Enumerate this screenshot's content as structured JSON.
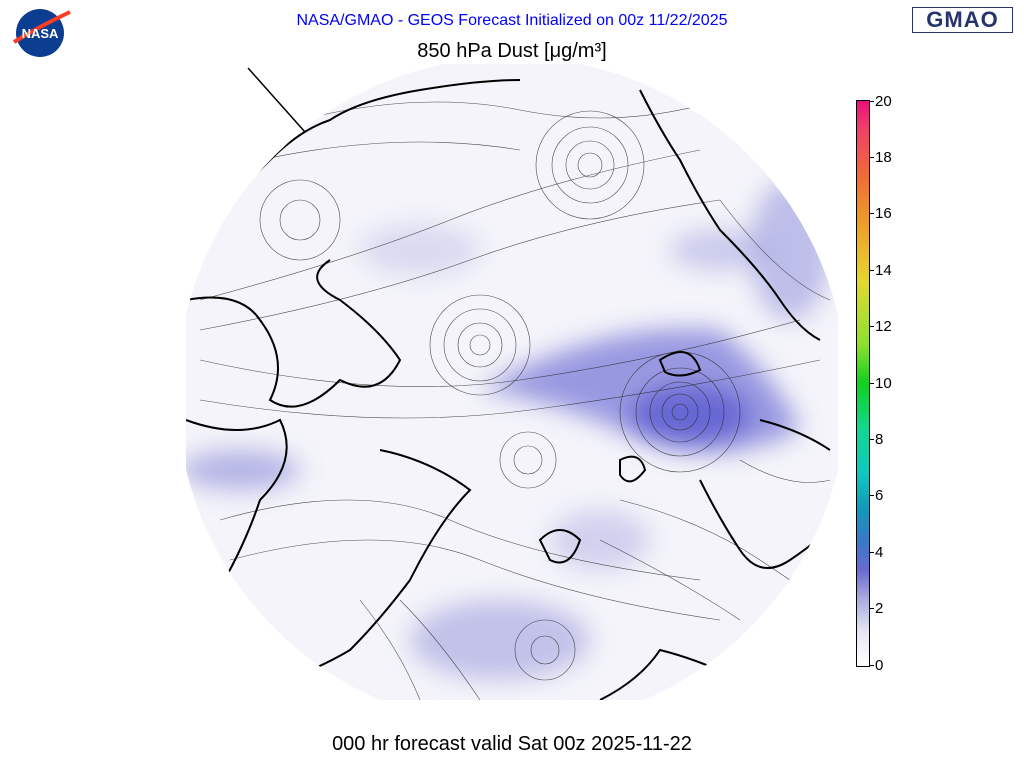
{
  "header": {
    "title": "NASA/GMAO - GEOS Forecast Initialized on 00z 11/22/2025"
  },
  "plot": {
    "title": "850 hPa Dust [μg/m³]"
  },
  "footer": {
    "valid_time": "000 hr forecast valid Sat 00z 2025-11-22"
  },
  "logos": {
    "left": "NASA",
    "right": "GMAO"
  },
  "colorbar": {
    "min": 0,
    "max": 20,
    "ticks": [
      "0",
      "2",
      "4",
      "6",
      "8",
      "10",
      "12",
      "14",
      "16",
      "18",
      "20"
    ],
    "colors": [
      "#ffffff",
      "#a9a9dd",
      "#6a6ad0",
      "#119ab8",
      "#10c8c0",
      "#10d020",
      "#e3d830",
      "#eca028",
      "#f06a38",
      "#e8107c"
    ]
  },
  "map": {
    "projection": "north polar stereographic",
    "field": "dust concentration with wind streamlines",
    "ocean_color": "#f4f4fa",
    "dust_color": "#6a6ad0"
  }
}
